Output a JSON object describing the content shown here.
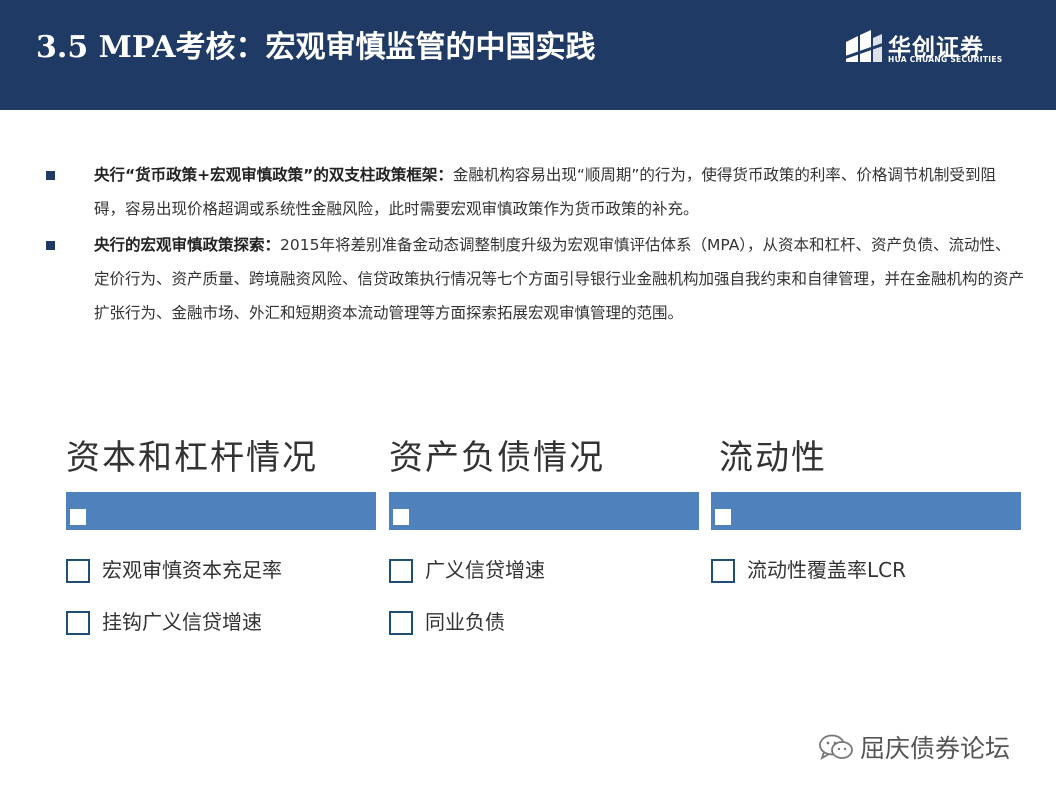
{
  "header": {
    "title": "3.5  MPA考核：宏观审慎监管的中国实践",
    "logo_cn": "华创证券",
    "logo_en": "HUA CHUANG SECURITIES"
  },
  "bullets": [
    {
      "label": "央行“货币政策+宏观审慎政策”的双支柱政策框架：",
      "text": "金融机构容易出现“顺周期”的行为，使得货币政策的利率、价格调节机制受到阻碍，容易出现价格超调或系统性金融风险，此时需要宏观审慎政策作为货币政策的补充。"
    },
    {
      "label": "央行的宏观审慎政策探索：",
      "text": "2015年将差别准备金动态调整制度升级为宏观审慎评估体系（MPA），从资本和杠杆、资产负债、流动性、定价行为、资产质量、跨境融资风险、信贷政策执行情况等七个方面引导银行业金融机构加强自我约束和自律管理，并在金融机构的资产扩张行为、金融市场、外汇和短期资本流动管理等方面探索拓展宏观审慎管理的范围。"
    }
  ],
  "columns": [
    {
      "title": "资本和杠杆情况",
      "items": [
        "宏观审慎资本充足率",
        "挂钩广义信贷增速"
      ]
    },
    {
      "title": "资产负债情况",
      "items": [
        "广义信贷增速",
        "同业负债"
      ]
    },
    {
      "title": "流动性",
      "items": [
        "流动性覆盖率LCR"
      ]
    }
  ],
  "watermark": {
    "text": "屈庆债券论坛",
    "icon": "wechat-icon"
  },
  "colors": {
    "header_bg": "#1f3a64",
    "bar_blue": "#4f81bd",
    "checkbox_border": "#1f4e79"
  }
}
